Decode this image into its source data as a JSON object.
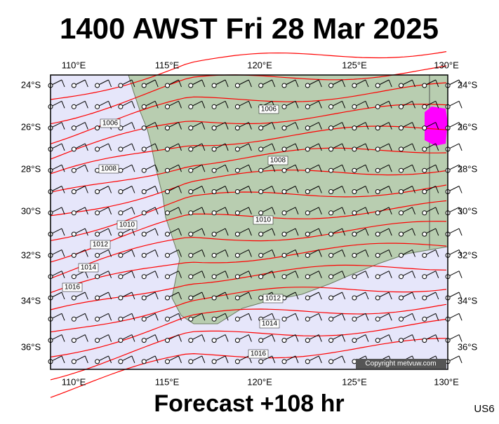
{
  "header": {
    "title": "1400 AWST Fri 28 Mar 2025"
  },
  "axes": {
    "lon_top": [
      "110°E",
      "115°E",
      "120°E",
      "125°E",
      "130°E"
    ],
    "lon_bottom": [
      "110°E",
      "115°E",
      "120°E",
      "125°E",
      "130°E"
    ],
    "lat_left": [
      "24°S",
      "26°S",
      "28°S",
      "30°S",
      "32°S",
      "34°S",
      "36°S"
    ],
    "lat_right": [
      "24°S",
      "26°S",
      "28°S",
      "30°S",
      "32°S",
      "34°S",
      "36°S"
    ]
  },
  "isobar_labels": [
    "1006",
    "1006",
    "1008",
    "1008",
    "1010",
    "1010",
    "1012",
    "1014",
    "1016",
    "1012",
    "1014",
    "1016"
  ],
  "footer": {
    "forecast": "Forecast +108 hr",
    "credit": "Copyright metvuw.com",
    "code": "US6"
  }
}
